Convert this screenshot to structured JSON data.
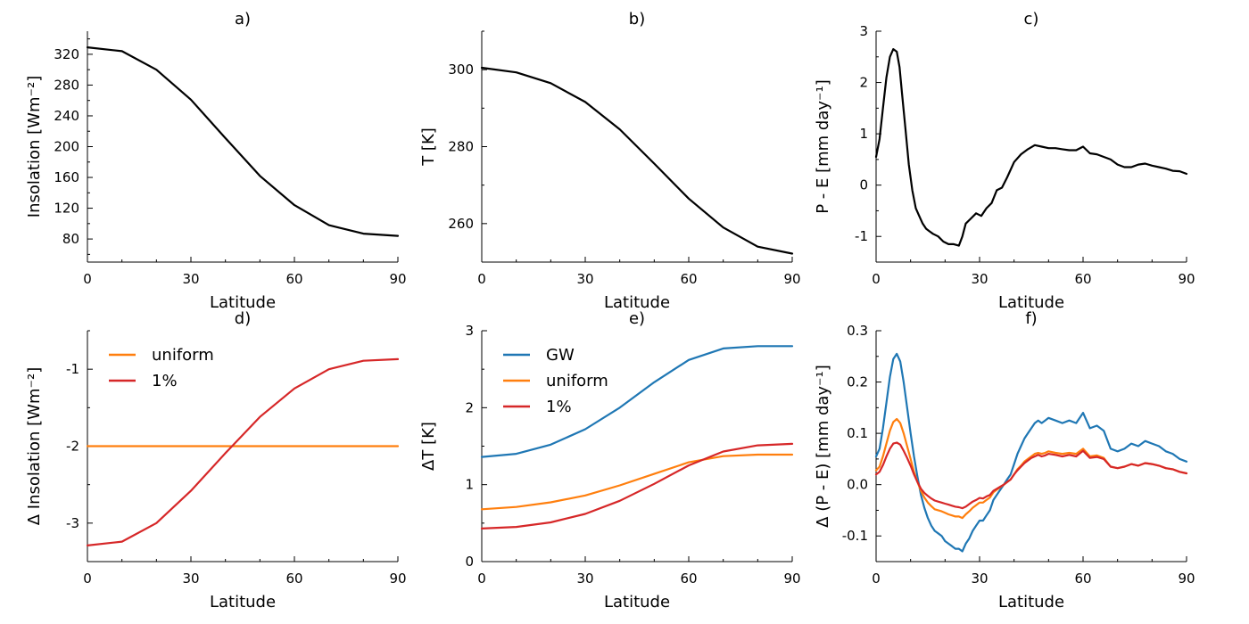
{
  "colors": {
    "black": "#000000",
    "blue": "#1f77b4",
    "orange": "#ff7f0e",
    "red": "#d62728"
  },
  "chart_data": [
    {
      "panel": "a",
      "type": "line",
      "title": "a)",
      "xlabel": "Latitude",
      "ylabel": "Insolation [Wm⁻²]",
      "xlim": [
        0,
        90
      ],
      "ylim": [
        50,
        350
      ],
      "xticks": [
        0,
        30,
        60,
        90
      ],
      "xtick_labels": [
        "0",
        "30",
        "60",
        "90"
      ],
      "xminor": [
        10,
        20,
        40,
        50,
        70,
        80
      ],
      "yticks": [
        80,
        120,
        160,
        200,
        240,
        280,
        320
      ],
      "ytick_labels": [
        "80",
        "120",
        "160",
        "200",
        "240",
        "280",
        "320"
      ],
      "yminor": [
        60,
        100,
        140,
        180,
        220,
        260,
        300,
        340
      ],
      "legend": null,
      "series": [
        {
          "color": "black",
          "x": [
            0,
            10,
            20,
            30,
            40,
            50,
            60,
            70,
            80,
            90
          ],
          "y": [
            329,
            324,
            300,
            261,
            211,
            162,
            124,
            98,
            87,
            84
          ]
        }
      ]
    },
    {
      "panel": "b",
      "type": "line",
      "title": "b)",
      "xlabel": "Latitude",
      "ylabel": "T [K]",
      "xlim": [
        0,
        90
      ],
      "ylim": [
        250,
        310
      ],
      "xticks": [
        0,
        30,
        60,
        90
      ],
      "xtick_labels": [
        "0",
        "30",
        "60",
        "90"
      ],
      "xminor": [
        10,
        20,
        40,
        50,
        70,
        80
      ],
      "yticks": [
        260,
        280,
        300
      ],
      "ytick_labels": [
        "260",
        "280",
        "300"
      ],
      "yminor": [
        250,
        270,
        290,
        310
      ],
      "legend": null,
      "series": [
        {
          "color": "black",
          "x": [
            0,
            10,
            20,
            30,
            40,
            50,
            60,
            70,
            80,
            90
          ],
          "y": [
            300.5,
            299.3,
            296.5,
            291.6,
            284.5,
            275.6,
            266.5,
            259.0,
            254.0,
            252.2
          ]
        }
      ]
    },
    {
      "panel": "c",
      "type": "line",
      "title": "c)",
      "xlabel": "Latitude",
      "ylabel": "P - E [mm day⁻¹]",
      "xlim": [
        0,
        90
      ],
      "ylim": [
        -1.5,
        3
      ],
      "xticks": [
        0,
        30,
        60,
        90
      ],
      "xtick_labels": [
        "0",
        "30",
        "60",
        "90"
      ],
      "xminor": [
        10,
        20,
        40,
        50,
        70,
        80
      ],
      "yticks": [
        -1,
        0,
        1,
        2,
        3
      ],
      "ytick_labels": [
        "-1",
        "0",
        "1",
        "2",
        "3"
      ],
      "yminor": [
        -1.5,
        -0.5,
        0.5,
        1.5,
        2.5
      ],
      "legend": null,
      "series": [
        {
          "color": "black",
          "x": [
            0,
            1,
            2,
            3,
            4,
            5,
            6,
            6.8,
            7.5,
            8.5,
            9.5,
            10.5,
            11.5,
            12.5,
            13.5,
            14.5,
            15.5,
            16.5,
            18,
            19.5,
            21,
            22.5,
            24,
            25,
            26,
            27.5,
            29,
            30.5,
            32,
            33.5,
            35,
            36.5,
            38,
            40,
            42,
            44,
            46,
            48,
            50,
            52,
            54,
            56,
            58,
            60,
            62,
            64,
            66,
            68,
            70,
            72,
            74,
            76,
            78,
            80,
            82,
            84,
            86,
            88,
            90
          ],
          "y": [
            0.55,
            0.9,
            1.5,
            2.1,
            2.5,
            2.65,
            2.6,
            2.3,
            1.8,
            1.1,
            0.4,
            -0.1,
            -0.45,
            -0.6,
            -0.75,
            -0.85,
            -0.9,
            -0.95,
            -1.0,
            -1.1,
            -1.15,
            -1.15,
            -1.18,
            -1.0,
            -0.75,
            -0.65,
            -0.55,
            -0.6,
            -0.45,
            -0.35,
            -0.1,
            -0.05,
            0.15,
            0.45,
            0.6,
            0.7,
            0.78,
            0.75,
            0.72,
            0.72,
            0.7,
            0.68,
            0.68,
            0.75,
            0.62,
            0.6,
            0.55,
            0.5,
            0.4,
            0.35,
            0.35,
            0.4,
            0.42,
            0.38,
            0.35,
            0.32,
            0.28,
            0.27,
            0.22
          ]
        }
      ]
    },
    {
      "panel": "d",
      "type": "line",
      "title": "d)",
      "xlabel": "Latitude",
      "ylabel": "Δ Insolation [Wm⁻²]",
      "xlim": [
        0,
        90
      ],
      "ylim": [
        -3.5,
        -0.5
      ],
      "xticks": [
        0,
        30,
        60,
        90
      ],
      "xtick_labels": [
        "0",
        "30",
        "60",
        "90"
      ],
      "xminor": [
        10,
        20,
        40,
        50,
        70,
        80
      ],
      "yticks": [
        -3,
        -2,
        -1
      ],
      "ytick_labels": [
        "-3",
        "-2",
        "-1"
      ],
      "yminor": [
        -3.5,
        -2.5,
        -1.5,
        -0.5
      ],
      "legend": "upper left",
      "series": [
        {
          "name": "uniform",
          "color": "orange",
          "x": [
            0,
            90
          ],
          "y": [
            -2.0,
            -2.0
          ]
        },
        {
          "name": "1%",
          "color": "red",
          "x": [
            0,
            10,
            20,
            30,
            40,
            50,
            60,
            70,
            80,
            90
          ],
          "y": [
            -3.29,
            -3.24,
            -3.0,
            -2.58,
            -2.09,
            -1.62,
            -1.25,
            -1.0,
            -0.89,
            -0.87
          ]
        }
      ]
    },
    {
      "panel": "e",
      "type": "line",
      "title": "e)",
      "xlabel": "Latitude",
      "ylabel": "ΔT [K]",
      "xlim": [
        0,
        90
      ],
      "ylim": [
        0,
        3
      ],
      "xticks": [
        0,
        30,
        60,
        90
      ],
      "xtick_labels": [
        "0",
        "30",
        "60",
        "90"
      ],
      "xminor": [
        10,
        20,
        40,
        50,
        70,
        80
      ],
      "yticks": [
        0,
        1,
        2,
        3
      ],
      "ytick_labels": [
        "0",
        "1",
        "2",
        "3"
      ],
      "yminor": [
        0.5,
        1.5,
        2.5
      ],
      "legend": "upper left",
      "series": [
        {
          "name": "GW",
          "color": "blue",
          "x": [
            0,
            10,
            20,
            30,
            40,
            50,
            60,
            70,
            80,
            90
          ],
          "y": [
            1.36,
            1.4,
            1.52,
            1.72,
            2.0,
            2.33,
            2.62,
            2.77,
            2.8,
            2.8
          ]
        },
        {
          "name": "uniform",
          "color": "orange",
          "x": [
            0,
            10,
            20,
            30,
            40,
            50,
            60,
            70,
            80,
            90
          ],
          "y": [
            0.68,
            0.71,
            0.77,
            0.86,
            0.99,
            1.14,
            1.29,
            1.37,
            1.39,
            1.39
          ]
        },
        {
          "name": "1%",
          "color": "red",
          "x": [
            0,
            10,
            20,
            30,
            40,
            50,
            60,
            70,
            80,
            90
          ],
          "y": [
            0.43,
            0.45,
            0.51,
            0.62,
            0.79,
            1.01,
            1.25,
            1.43,
            1.51,
            1.53
          ]
        }
      ]
    },
    {
      "panel": "f",
      "type": "line",
      "title": "f)",
      "xlabel": "Latitude",
      "ylabel": "Δ (P - E) [mm day⁻¹]",
      "xlim": [
        0,
        90
      ],
      "ylim": [
        -0.15,
        0.3
      ],
      "xticks": [
        0,
        30,
        60,
        90
      ],
      "xtick_labels": [
        "0",
        "30",
        "60",
        "90"
      ],
      "xminor": [
        10,
        20,
        40,
        50,
        70,
        80
      ],
      "yticks": [
        -0.1,
        0.0,
        0.1,
        0.2,
        0.3
      ],
      "ytick_labels": [
        "-0.1",
        "0.0",
        "0.1",
        "0.2",
        "0.3"
      ],
      "yminor": [
        -0.15,
        -0.05,
        0.05,
        0.15,
        0.25
      ],
      "legend": null,
      "series": [
        {
          "color": "blue",
          "x": [
            0,
            1,
            2,
            3,
            4,
            5,
            6,
            7,
            8,
            9,
            10,
            11,
            12,
            13,
            14,
            15,
            16,
            17,
            18,
            19,
            20,
            21,
            22,
            23,
            24,
            25,
            26,
            27,
            28,
            29,
            30,
            31,
            32,
            33,
            34,
            35,
            36,
            37,
            38,
            39,
            40,
            41,
            42,
            43,
            44,
            45,
            46,
            47,
            48,
            49,
            50,
            52,
            54,
            56,
            58,
            60,
            62,
            64,
            66,
            68,
            70,
            72,
            74,
            76,
            78,
            80,
            82,
            84,
            86,
            88,
            90
          ],
          "y": [
            0.055,
            0.07,
            0.11,
            0.16,
            0.21,
            0.245,
            0.255,
            0.24,
            0.2,
            0.15,
            0.1,
            0.055,
            0.015,
            -0.02,
            -0.045,
            -0.065,
            -0.08,
            -0.09,
            -0.095,
            -0.1,
            -0.11,
            -0.115,
            -0.12,
            -0.125,
            -0.125,
            -0.13,
            -0.115,
            -0.105,
            -0.09,
            -0.08,
            -0.07,
            -0.07,
            -0.06,
            -0.05,
            -0.03,
            -0.02,
            -0.01,
            0.0,
            0.01,
            0.02,
            0.04,
            0.06,
            0.075,
            0.09,
            0.1,
            0.11,
            0.12,
            0.125,
            0.12,
            0.125,
            0.13,
            0.125,
            0.12,
            0.125,
            0.12,
            0.14,
            0.11,
            0.115,
            0.105,
            0.07,
            0.065,
            0.07,
            0.08,
            0.075,
            0.085,
            0.08,
            0.075,
            0.065,
            0.06,
            0.05,
            0.045
          ]
        },
        {
          "color": "orange",
          "x": [
            0,
            1,
            2,
            3,
            4,
            5,
            6,
            7,
            8,
            9,
            10,
            11,
            12,
            13,
            14,
            15,
            16,
            17,
            18,
            19,
            20,
            21,
            22,
            23,
            24,
            25,
            26,
            27,
            28,
            29,
            30,
            31,
            32,
            33,
            34,
            35,
            36,
            37,
            38,
            39,
            40,
            41,
            42,
            43,
            44,
            45,
            46,
            47,
            48,
            49,
            50,
            52,
            54,
            56,
            58,
            60,
            62,
            64,
            66,
            68,
            70,
            72,
            74,
            76,
            78,
            80,
            82,
            84,
            86,
            88,
            90
          ],
          "y": [
            0.028,
            0.035,
            0.055,
            0.08,
            0.105,
            0.122,
            0.128,
            0.12,
            0.1,
            0.075,
            0.05,
            0.025,
            0.005,
            -0.012,
            -0.025,
            -0.035,
            -0.042,
            -0.048,
            -0.05,
            -0.052,
            -0.055,
            -0.058,
            -0.06,
            -0.062,
            -0.062,
            -0.065,
            -0.058,
            -0.052,
            -0.045,
            -0.04,
            -0.035,
            -0.035,
            -0.03,
            -0.025,
            -0.015,
            -0.01,
            -0.005,
            0.0,
            0.005,
            0.01,
            0.02,
            0.03,
            0.037,
            0.045,
            0.05,
            0.055,
            0.06,
            0.062,
            0.06,
            0.062,
            0.065,
            0.062,
            0.06,
            0.062,
            0.06,
            0.07,
            0.055,
            0.057,
            0.052,
            0.035,
            0.032,
            0.035,
            0.04,
            0.037,
            0.042,
            0.04,
            0.037,
            0.032,
            0.03,
            0.025,
            0.022
          ]
        },
        {
          "color": "red",
          "x": [
            0,
            1,
            2,
            3,
            4,
            5,
            6,
            7,
            8,
            9,
            10,
            11,
            12,
            13,
            14,
            15,
            16,
            17,
            18,
            19,
            20,
            21,
            22,
            23,
            24,
            25,
            26,
            27,
            28,
            29,
            30,
            31,
            32,
            33,
            34,
            35,
            36,
            37,
            38,
            39,
            40,
            41,
            42,
            43,
            44,
            45,
            46,
            47,
            48,
            49,
            50,
            52,
            54,
            56,
            58,
            60,
            62,
            64,
            66,
            68,
            70,
            72,
            74,
            76,
            78,
            80,
            82,
            84,
            86,
            88,
            90
          ],
          "y": [
            0.02,
            0.025,
            0.038,
            0.055,
            0.07,
            0.08,
            0.082,
            0.078,
            0.066,
            0.052,
            0.037,
            0.02,
            0.005,
            -0.008,
            -0.016,
            -0.022,
            -0.027,
            -0.031,
            -0.033,
            -0.035,
            -0.037,
            -0.039,
            -0.041,
            -0.043,
            -0.044,
            -0.046,
            -0.043,
            -0.038,
            -0.033,
            -0.03,
            -0.026,
            -0.027,
            -0.023,
            -0.02,
            -0.012,
            -0.008,
            -0.004,
            0.0,
            0.005,
            0.01,
            0.02,
            0.028,
            0.035,
            0.042,
            0.047,
            0.052,
            0.055,
            0.058,
            0.055,
            0.057,
            0.06,
            0.058,
            0.055,
            0.058,
            0.055,
            0.066,
            0.052,
            0.054,
            0.05,
            0.035,
            0.032,
            0.035,
            0.04,
            0.037,
            0.042,
            0.04,
            0.037,
            0.032,
            0.03,
            0.025,
            0.022
          ]
        }
      ]
    }
  ]
}
